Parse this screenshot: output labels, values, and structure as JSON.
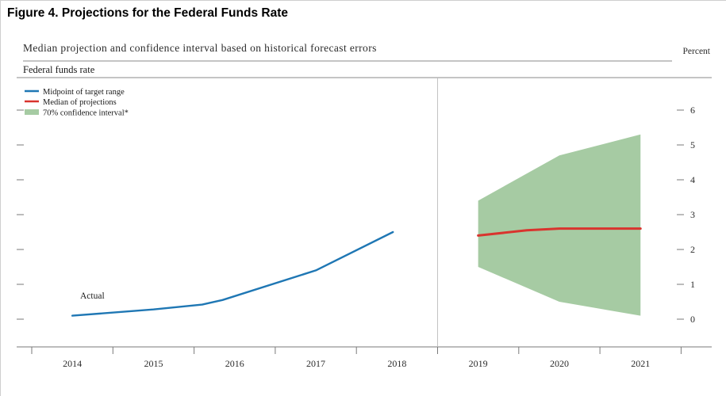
{
  "title": "Figure 4. Projections for the Federal Funds Rate",
  "subtitle": "Median projection and confidence interval based on historical forecast errors",
  "chart": {
    "unit_label": "Percent",
    "group_label": "Federal funds rate",
    "actual_label": "Actual",
    "legend": [
      {
        "label": "Midpoint of target range",
        "color": "#1f77b4",
        "type": "line"
      },
      {
        "label": "Median of projections",
        "color": "#d9342e",
        "type": "line"
      },
      {
        "label": "70% confidence interval*",
        "color": "#a6cba3",
        "type": "area"
      }
    ]
  },
  "chart_data": {
    "type": "line",
    "title": "Projections for the Federal Funds Rate",
    "ylabel": "Percent",
    "ylim": [
      -0.8,
      7
    ],
    "grid": false,
    "legend_position": "top-left",
    "y_ticks": [
      0,
      1,
      2,
      3,
      4,
      5,
      6
    ],
    "x_tick_labels": [
      "2014",
      "2015",
      "2016",
      "2017",
      "2018",
      "2019",
      "2020",
      "2021"
    ],
    "projection_divider_x": 2019.0,
    "series": [
      {
        "name": "Midpoint of target range (actual)",
        "color": "#1f77b4",
        "x": [
          2014.5,
          2015.5,
          2016.1,
          2016.35,
          2017.5,
          2018.45
        ],
        "values": [
          0.1,
          0.28,
          0.42,
          0.55,
          1.4,
          2.5
        ]
      },
      {
        "name": "Median of projections",
        "color": "#d9342e",
        "x": [
          2019.5,
          2020.1,
          2020.5,
          2021.5
        ],
        "values": [
          2.4,
          2.55,
          2.6,
          2.6
        ]
      }
    ],
    "band": {
      "name": "70% confidence interval",
      "color": "#a6cba3",
      "x": [
        2019.5,
        2020.5,
        2021.5
      ],
      "upper": [
        3.4,
        4.7,
        5.3
      ],
      "lower": [
        1.5,
        0.5,
        0.1
      ]
    }
  }
}
